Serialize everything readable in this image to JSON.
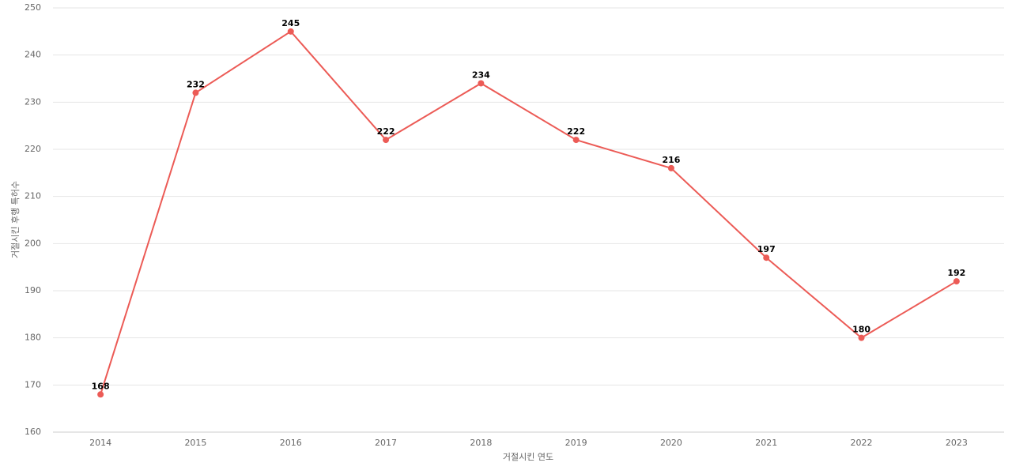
{
  "chart_data": {
    "type": "line",
    "categories": [
      "2014",
      "2015",
      "2016",
      "2017",
      "2018",
      "2019",
      "2020",
      "2021",
      "2022",
      "2023"
    ],
    "values": [
      168,
      232,
      245,
      222,
      234,
      222,
      216,
      197,
      180,
      192
    ],
    "color": "#ec5b56",
    "x_label": "거절시킨 연도",
    "y_label": "거절시킨 후행 특허수",
    "ylim": [
      160,
      250
    ],
    "yticks": [
      160,
      170,
      180,
      190,
      200,
      210,
      220,
      230,
      240,
      250
    ],
    "grid": true
  }
}
